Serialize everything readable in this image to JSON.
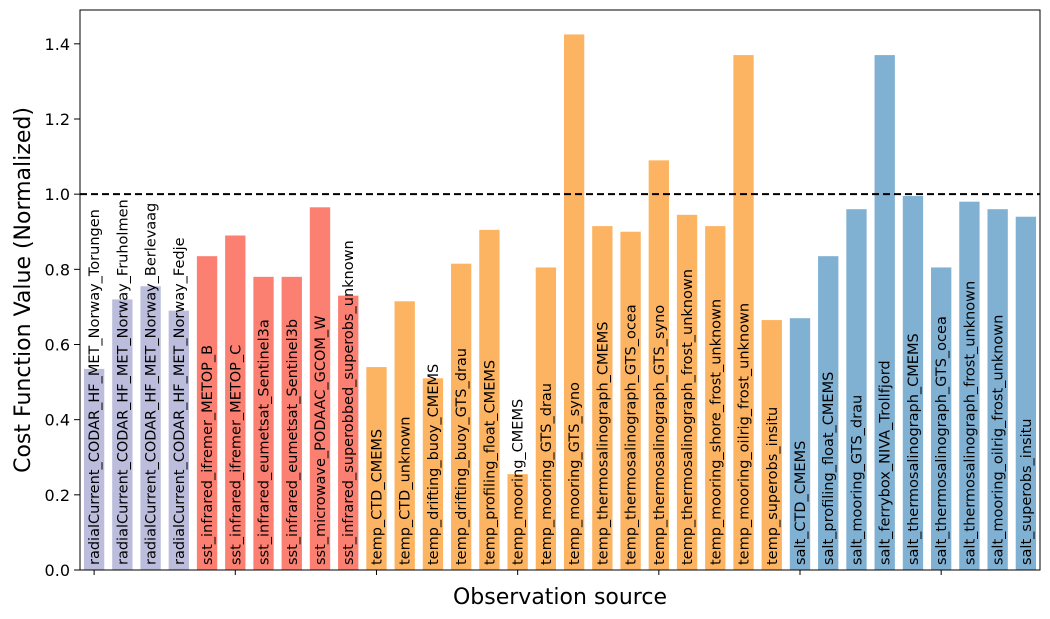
{
  "chart_data": {
    "type": "bar",
    "xlabel": "Observation source",
    "ylabel": "Cost Function Value (Normalized)",
    "ylim": [
      0,
      1.49
    ],
    "yticks": [
      "0.0",
      "0.2",
      "0.4",
      "0.6",
      "0.8",
      "1.0",
      "1.2",
      "1.4"
    ],
    "reference_line": 1.0,
    "grid": false,
    "colors": {
      "radial": "#bcbddc",
      "sst": "#fb8072",
      "temp": "#fdb462",
      "salt": "#80b1d3",
      "reference": "#000000"
    },
    "categories": [
      "radialCurrent_CODAR_HF_MET_Norway_Torungen",
      "radialCurrent_CODAR_HF_MET_Norway_Fruholmen",
      "radialCurrent_CODAR_HF_MET_Norway_Berlevaag",
      "radialCurrent_CODAR_HF_MET_Norway_Fedje",
      "sst_infrared_ifremer_METOP_B",
      "sst_infrared_ifremer_METOP_C",
      "sst_infrared_eumetsat_Sentinel3a",
      "sst_infrared_eumetsat_Sentinel3b",
      "sst_microwave_PODAAC_GCOM_W",
      "sst_infrared_superobbed_superobs_unknown",
      "temp_CTD_CMEMS",
      "temp_CTD_unknown",
      "temp_drifting_buoy_CMEMS",
      "temp_drifting_buoy_GTS_drau",
      "temp_profiling_float_CMEMS",
      "temp_mooring_CMEMS",
      "temp_mooring_GTS_drau",
      "temp_mooring_GTS_syno",
      "temp_thermosalinograph_CMEMS",
      "temp_thermosalinograph_GTS_ocea",
      "temp_thermosalinograph_GTS_syno",
      "temp_thermosalinograph_frost_unknown",
      "temp_mooring_shore_frost_unknown",
      "temp_mooring_oilrig_frost_unknown",
      "temp_superobs_insitu",
      "salt_CTD_CMEMS",
      "salt_profiling_float_CMEMS",
      "salt_mooring_GTS_drau",
      "salt_ferrybox_NIVA_Trollfjord",
      "salt_thermosalinograph_CMEMS",
      "salt_thermosalinograph_GTS_ocea",
      "salt_thermosalinograph_frost_unknown",
      "salt_mooring_oilrig_frost_unknown",
      "salt_superobs_insitu"
    ],
    "values": [
      0.535,
      0.72,
      0.755,
      0.69,
      0.835,
      0.89,
      0.78,
      0.78,
      0.965,
      0.73,
      0.54,
      0.715,
      0.51,
      0.815,
      0.905,
      0.255,
      0.805,
      1.425,
      0.915,
      0.9,
      1.09,
      0.945,
      0.915,
      1.37,
      0.665,
      0.67,
      0.835,
      0.96,
      1.37,
      0.995,
      0.805,
      0.98,
      0.96,
      0.94
    ],
    "groups": [
      "radial",
      "radial",
      "radial",
      "radial",
      "sst",
      "sst",
      "sst",
      "sst",
      "sst",
      "sst",
      "temp",
      "temp",
      "temp",
      "temp",
      "temp",
      "temp",
      "temp",
      "temp",
      "temp",
      "temp",
      "temp",
      "temp",
      "temp",
      "temp",
      "temp",
      "salt",
      "salt",
      "salt",
      "salt",
      "salt",
      "salt",
      "salt",
      "salt",
      "salt"
    ]
  }
}
